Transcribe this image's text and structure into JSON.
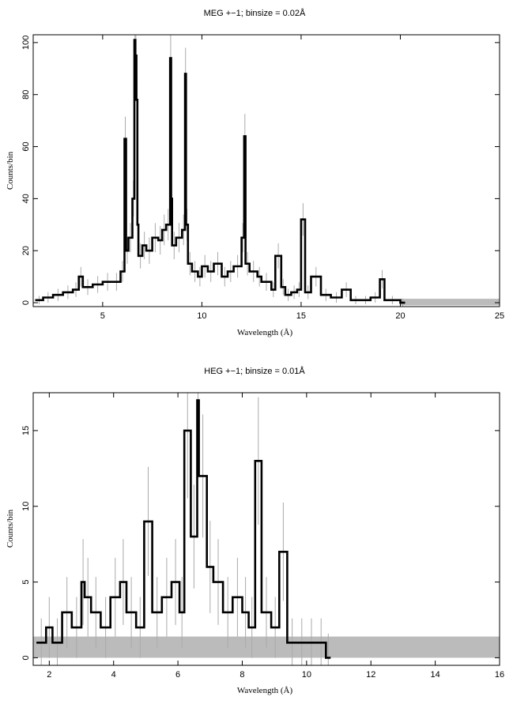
{
  "chart_data": [
    {
      "type": "line",
      "title": "MEG +−1; binsize = 0.02Å",
      "xlabel": "Wavelength (Å)",
      "ylabel": "Counts/bin",
      "xlim": [
        1.5,
        25
      ],
      "ylim": [
        -1.5,
        103
      ],
      "xticks": [
        5,
        10,
        15,
        20,
        25
      ],
      "yticks": [
        0,
        20,
        40,
        60,
        80,
        100
      ],
      "series": [
        {
          "style": "histogram-with-error-bars",
          "color": "#000000",
          "error_color": "#aaaaaa",
          "x": [
            1.6,
            2.0,
            2.5,
            3.0,
            3.5,
            3.8,
            4.0,
            4.5,
            5.0,
            5.5,
            5.9,
            6.1,
            6.18,
            6.3,
            6.5,
            6.6,
            6.65,
            6.7,
            6.75,
            6.8,
            7.0,
            7.2,
            7.5,
            7.8,
            8.0,
            8.2,
            8.4,
            8.45,
            8.5,
            8.7,
            9.0,
            9.15,
            9.2,
            9.3,
            9.5,
            9.8,
            10.0,
            10.3,
            10.6,
            11.0,
            11.3,
            11.6,
            12.0,
            12.13,
            12.2,
            12.4,
            12.8,
            13.0,
            13.5,
            13.7,
            14.0,
            14.2,
            14.5,
            14.8,
            15.0,
            15.2,
            15.5,
            16.0,
            16.5,
            17.05,
            17.5,
            18.0,
            18.5,
            18.97,
            19.2,
            20.0
          ],
          "y": [
            1,
            2,
            3,
            4,
            5,
            10,
            6,
            7,
            8,
            8,
            12,
            63,
            20,
            25,
            40,
            101,
            95,
            78,
            30,
            18,
            22,
            20,
            25,
            24,
            28,
            30,
            94,
            40,
            22,
            25,
            28,
            88,
            30,
            15,
            12,
            10,
            14,
            12,
            15,
            10,
            12,
            14,
            25,
            64,
            15,
            12,
            10,
            8,
            5,
            18,
            6,
            3,
            4,
            5,
            32,
            4,
            10,
            3,
            2,
            5,
            1,
            1,
            2,
            9,
            1,
            0
          ]
        }
      ],
      "background_band": {
        "x": [
          20,
          25
        ],
        "y": [
          -1,
          1.5
        ],
        "color": "#bbbbbb"
      }
    },
    {
      "type": "line",
      "title": "HEG +−1; binsize = 0.01Å",
      "xlabel": "Wavelength (Å)",
      "ylabel": "Counts/bin",
      "xlim": [
        1.5,
        16
      ],
      "ylim": [
        -0.5,
        17.5
      ],
      "xticks": [
        2,
        4,
        6,
        8,
        10,
        12,
        14,
        16
      ],
      "yticks": [
        0,
        5,
        10,
        15
      ],
      "series": [
        {
          "style": "histogram-with-error-bars",
          "color": "#000000",
          "error_color": "#aaaaaa",
          "x": [
            1.6,
            1.9,
            2.1,
            2.4,
            2.7,
            3.0,
            3.1,
            3.3,
            3.6,
            3.9,
            4.2,
            4.4,
            4.7,
            4.95,
            5.2,
            5.5,
            5.8,
            6.05,
            6.2,
            6.4,
            6.6,
            6.65,
            6.9,
            7.1,
            7.4,
            7.7,
            8.0,
            8.2,
            8.4,
            8.6,
            8.9,
            9.15,
            9.4,
            9.7,
            10.0,
            10.3,
            10.6
          ],
          "y": [
            1,
            2,
            1,
            3,
            2,
            5,
            4,
            3,
            2,
            4,
            5,
            3,
            2,
            9,
            3,
            4,
            5,
            3,
            15,
            8,
            17,
            12,
            6,
            5,
            3,
            4,
            3,
            2,
            13,
            3,
            2,
            7,
            1,
            1,
            1,
            1,
            0
          ]
        }
      ],
      "background_band": {
        "x": [
          1.5,
          16
        ],
        "y": [
          0,
          1.4
        ],
        "color": "#bbbbbb"
      }
    }
  ]
}
